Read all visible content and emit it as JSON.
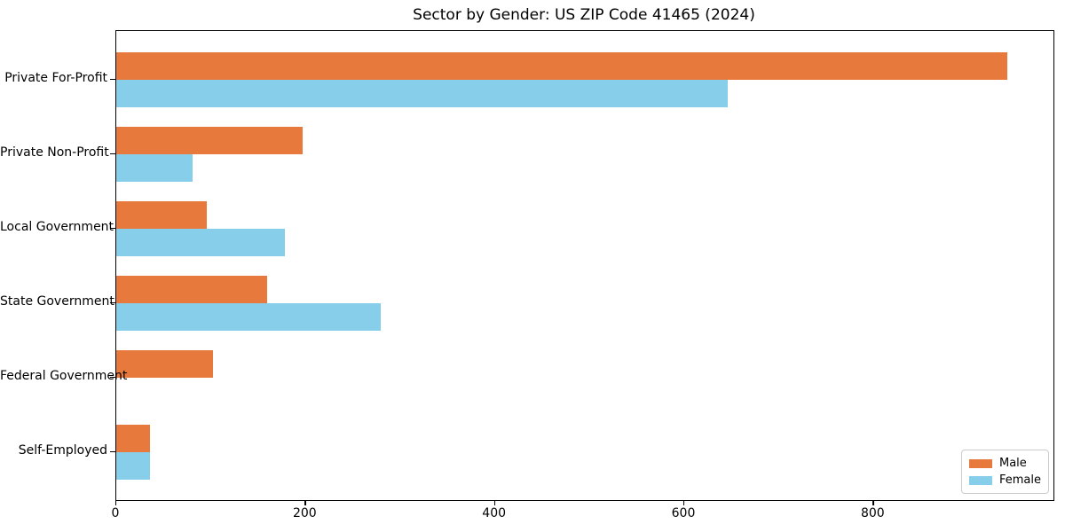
{
  "title": "Sector by Gender: US ZIP Code 41465 (2024)",
  "chart_data": {
    "type": "bar",
    "orientation": "horizontal",
    "title": "Sector by Gender: US ZIP Code 41465 (2024)",
    "categories": [
      "Private For-Profit",
      "Private Non-Profit",
      "Local Government",
      "State Government",
      "Federal Government",
      "Self-Employed"
    ],
    "series": [
      {
        "name": "Male",
        "color": "#E8793D",
        "values": [
          941,
          197,
          96,
          159,
          102,
          36
        ]
      },
      {
        "name": "Female",
        "color": "#87CEEB",
        "values": [
          646,
          81,
          178,
          279,
          0,
          36
        ]
      }
    ],
    "xlabel": "",
    "ylabel": "",
    "xlim": [
      0,
      990
    ],
    "xticks": [
      0,
      200,
      400,
      600,
      800
    ],
    "grid": false,
    "legend_position": "lower right",
    "background": "#ffffff",
    "spine_color": "#000000"
  },
  "legend": {
    "items": [
      {
        "label": "Male",
        "color": "#E8793D"
      },
      {
        "label": "Female",
        "color": "#87CEEB"
      }
    ]
  }
}
